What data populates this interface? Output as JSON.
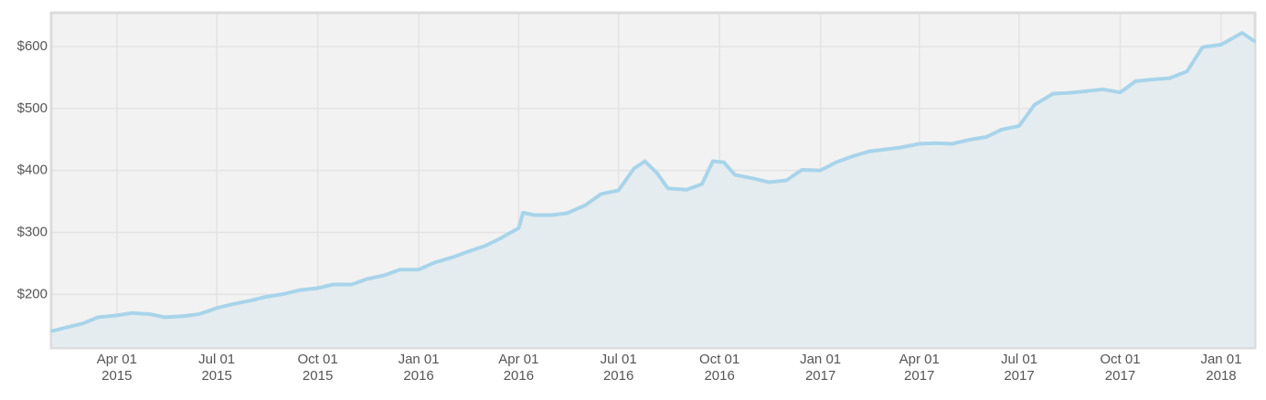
{
  "chart_data": {
    "type": "area",
    "x": [
      "2015-02-01",
      "2015-03-01",
      "2015-03-15",
      "2015-04-01",
      "2015-04-15",
      "2015-05-01",
      "2015-05-15",
      "2015-06-01",
      "2015-06-15",
      "2015-07-01",
      "2015-07-15",
      "2015-08-01",
      "2015-08-15",
      "2015-09-01",
      "2015-09-15",
      "2015-10-01",
      "2015-10-15",
      "2015-11-01",
      "2015-11-15",
      "2015-12-01",
      "2015-12-15",
      "2016-01-01",
      "2016-01-15",
      "2016-02-01",
      "2016-02-15",
      "2016-03-01",
      "2016-03-15",
      "2016-04-01",
      "2016-04-05",
      "2016-04-15",
      "2016-05-01",
      "2016-05-15",
      "2016-06-01",
      "2016-06-15",
      "2016-07-01",
      "2016-07-15",
      "2016-07-25",
      "2016-08-05",
      "2016-08-15",
      "2016-09-01",
      "2016-09-15",
      "2016-09-25",
      "2016-10-05",
      "2016-10-15",
      "2016-11-01",
      "2016-11-15",
      "2016-12-01",
      "2016-12-15",
      "2017-01-01",
      "2017-01-15",
      "2017-02-01",
      "2017-02-15",
      "2017-03-01",
      "2017-03-15",
      "2017-04-01",
      "2017-04-15",
      "2017-05-01",
      "2017-05-15",
      "2017-06-01",
      "2017-06-15",
      "2017-07-01",
      "2017-07-15",
      "2017-08-01",
      "2017-08-15",
      "2017-09-01",
      "2017-09-15",
      "2017-10-01",
      "2017-10-15",
      "2017-11-01",
      "2017-11-15",
      "2017-12-01",
      "2017-12-15",
      "2018-01-01",
      "2018-01-20",
      "2018-01-31"
    ],
    "values": [
      141,
      153,
      163,
      166,
      170,
      168,
      163,
      165,
      168,
      178,
      184,
      190,
      196,
      201,
      207,
      210,
      216,
      216,
      225,
      231,
      240,
      240,
      251,
      260,
      269,
      278,
      290,
      307,
      332,
      328,
      328,
      331,
      344,
      362,
      368,
      403,
      415,
      396,
      371,
      369,
      378,
      415,
      413,
      393,
      387,
      381,
      384,
      401,
      400,
      413,
      424,
      431,
      434,
      437,
      443,
      444,
      443,
      449,
      454,
      466,
      472,
      506,
      524,
      525,
      528,
      531,
      526,
      544,
      547,
      549,
      560,
      599,
      603,
      622,
      609
    ],
    "color": "#a8d4ea",
    "fill_color": "#e4ecf0",
    "xlim": [
      "2015-02-01",
      "2018-01-31"
    ],
    "xticks": [
      {
        "value": "2015-04-01",
        "label": "Apr 01\n2015"
      },
      {
        "value": "2015-07-01",
        "label": "Jul 01\n2015"
      },
      {
        "value": "2015-10-01",
        "label": "Oct 01\n2015"
      },
      {
        "value": "2016-01-01",
        "label": "Jan 01\n2016"
      },
      {
        "value": "2016-04-01",
        "label": "Apr 01\n2016"
      },
      {
        "value": "2016-07-01",
        "label": "Jul 01\n2016"
      },
      {
        "value": "2016-10-01",
        "label": "Oct 01\n2016"
      },
      {
        "value": "2017-01-01",
        "label": "Jan 01\n2017"
      },
      {
        "value": "2017-04-01",
        "label": "Apr 01\n2017"
      },
      {
        "value": "2017-07-01",
        "label": "Jul 01\n2017"
      },
      {
        "value": "2017-10-01",
        "label": "Oct 01\n2017"
      },
      {
        "value": "2018-01-01",
        "label": "Jan 01\n2018"
      }
    ],
    "ylim": [
      115,
      653
    ],
    "yticks": [
      {
        "value": 200,
        "label": "$200"
      },
      {
        "value": 300,
        "label": "$300"
      },
      {
        "value": 400,
        "label": "$400"
      },
      {
        "value": 500,
        "label": "$500"
      },
      {
        "value": 600,
        "label": "$600"
      }
    ],
    "grid": true
  }
}
